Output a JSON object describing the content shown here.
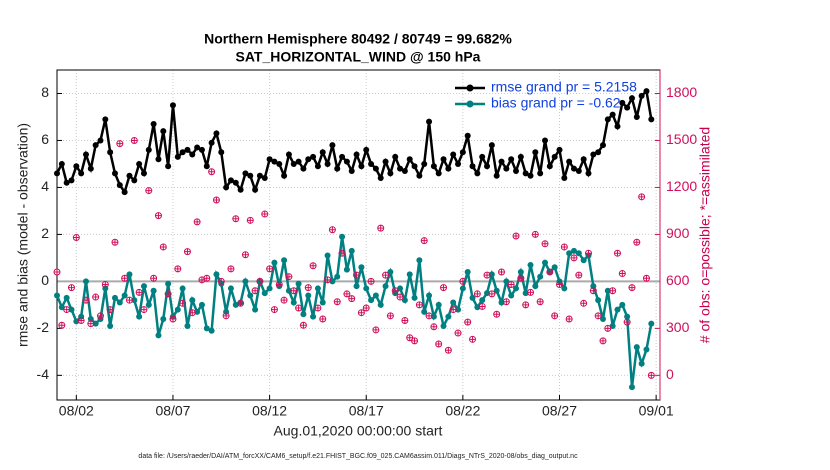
{
  "chart_data": {
    "type": "line",
    "title": "Northern Hemisphere 80492 / 80749 = 99.682%",
    "subtitle": "SAT_HORIZONTAL_WIND @ 150 hPa",
    "xlabel": "Aug.01,2020 00:00:00 start",
    "ylabel": "rmse and bias (model - observation)",
    "y2label": "# of obs: o=possible; *=assimilated",
    "footnote": "data file: /Users/raeder/DAI/ATM_forcXX/CAM6_setup/f.e21.FHIST_BGC.f09_025.CAM6assim.011/Diags_NTrS_2020-08/obs_diag_output.nc",
    "legend": "upper right",
    "grid": true,
    "xlim": [
      0,
      31.2
    ],
    "xticks": [
      {
        "value": 1,
        "label": "08/02"
      },
      {
        "value": 6,
        "label": "08/07"
      },
      {
        "value": 11,
        "label": "08/12"
      },
      {
        "value": 16,
        "label": "08/17"
      },
      {
        "value": 21,
        "label": "08/22"
      },
      {
        "value": 26,
        "label": "08/27"
      },
      {
        "value": 31,
        "label": "09/01"
      }
    ],
    "ylim": [
      -5.05,
      9.0
    ],
    "yticks": [
      -4,
      -2,
      0,
      2,
      4,
      6,
      8
    ],
    "y2lim": [
      -157.5,
      1950
    ],
    "y2ticks": [
      0,
      300,
      600,
      900,
      1200,
      1500,
      1800
    ],
    "x": [
      0,
      0.25,
      0.5,
      0.75,
      1,
      1.25,
      1.5,
      1.75,
      2,
      2.25,
      2.5,
      2.75,
      3,
      3.25,
      3.5,
      3.75,
      4,
      4.25,
      4.5,
      4.75,
      5,
      5.25,
      5.5,
      5.75,
      6,
      6.25,
      6.5,
      6.75,
      7,
      7.25,
      7.5,
      7.75,
      8,
      8.25,
      8.5,
      8.75,
      9,
      9.25,
      9.5,
      9.75,
      10,
      10.25,
      10.5,
      10.75,
      11,
      11.25,
      11.5,
      11.75,
      12,
      12.25,
      12.5,
      12.75,
      13,
      13.25,
      13.5,
      13.75,
      14,
      14.25,
      14.5,
      14.75,
      15,
      15.25,
      15.5,
      15.75,
      16,
      16.25,
      16.5,
      16.75,
      17,
      17.25,
      17.5,
      17.75,
      18,
      18.25,
      18.5,
      18.75,
      19,
      19.25,
      19.5,
      19.75,
      20,
      20.25,
      20.5,
      20.75,
      21,
      21.25,
      21.5,
      21.75,
      22,
      22.25,
      22.5,
      22.75,
      23,
      23.25,
      23.5,
      23.75,
      24,
      24.25,
      24.5,
      24.75,
      25,
      25.25,
      25.5,
      25.75,
      26,
      26.25,
      26.5,
      26.75,
      27,
      27.25,
      27.5,
      27.75,
      28,
      28.25,
      28.5,
      28.75,
      29,
      29.25,
      29.5,
      29.75,
      30,
      30.25,
      30.5,
      30.75
    ],
    "series": [
      {
        "name": "rmse grand pr = 5.2158",
        "color": "#000000",
        "values": [
          4.6,
          5.0,
          4.2,
          4.3,
          4.9,
          4.6,
          5.4,
          4.8,
          5.8,
          6.0,
          6.9,
          5.5,
          4.6,
          4.1,
          3.8,
          4.5,
          4.3,
          5.0,
          4.6,
          5.6,
          6.7,
          5.2,
          6.4,
          4.9,
          7.5,
          5.3,
          5.5,
          5.6,
          5.4,
          5.7,
          5.6,
          4.9,
          5.9,
          6.3,
          5.5,
          4.0,
          4.3,
          4.2,
          3.9,
          4.6,
          4.5,
          3.9,
          4.5,
          4.4,
          5.2,
          5.1,
          5.0,
          4.5,
          5.4,
          5.0,
          5.1,
          4.8,
          5.2,
          5.3,
          4.9,
          5.5,
          5.0,
          5.8,
          4.8,
          5.3,
          5.1,
          4.7,
          5.4,
          4.9,
          5.6,
          5.0,
          4.8,
          4.4,
          5.1,
          4.6,
          5.3,
          4.8,
          4.7,
          5.2,
          4.9,
          4.5,
          5.0,
          6.8,
          4.9,
          4.6,
          5.2,
          4.8,
          5.4,
          5.0,
          5.5,
          6.2,
          4.9,
          4.6,
          5.3,
          4.9,
          5.8,
          4.5,
          5.1,
          4.8,
          5.2,
          4.7,
          5.3,
          4.6,
          4.5,
          5.5,
          4.6,
          6.0,
          4.9,
          5.3,
          5.6,
          4.4,
          5.1,
          4.8,
          4.7,
          5.2,
          4.6,
          5.4,
          5.5,
          5.8,
          6.9,
          7.1,
          6.6,
          7.6,
          7.4,
          7.8,
          7.0,
          7.9,
          8.1,
          6.9
        ]
      },
      {
        "name": "bias grand pr = -0.62",
        "color": "#008080",
        "values": [
          -0.6,
          -1.1,
          -0.7,
          -1.2,
          -1.7,
          -1.5,
          0.0,
          -1.6,
          -1.8,
          -1.6,
          -0.3,
          -1.9,
          -0.7,
          -0.9,
          -0.6,
          0.3,
          -0.8,
          -1.5,
          -0.2,
          -1.0,
          -0.4,
          -2.3,
          -1.6,
          -0.1,
          -1.5,
          -1.2,
          -0.3,
          -1.9,
          -0.8,
          -1.3,
          -1.0,
          -2.0,
          -2.1,
          0.3,
          -0.1,
          -1.3,
          -0.3,
          -1.0,
          -0.9,
          0.0,
          -0.6,
          -1.2,
          0.0,
          -0.5,
          -0.3,
          0.8,
          -0.2,
          0.9,
          -0.4,
          -0.9,
          -0.1,
          -1.4,
          -0.6,
          -1.5,
          -0.3,
          -0.9,
          1.1,
          0.0,
          0.2,
          1.9,
          0.5,
          1.3,
          -0.2,
          0.6,
          -0.3,
          -0.8,
          -0.6,
          -1.0,
          -0.2,
          0.4,
          -0.5,
          -0.3,
          -0.8,
          0.3,
          -0.7,
          0.9,
          -1.3,
          -0.6,
          -1.5,
          -1.0,
          -1.9,
          -1.5,
          -0.9,
          -1.2,
          -0.3,
          0.4,
          -0.7,
          -1.1,
          -0.8,
          -0.5,
          0.3,
          -0.4,
          -0.9,
          0.0,
          -0.6,
          -0.3,
          0.4,
          -0.5,
          0.7,
          -0.2,
          0.2,
          0.8,
          0.4,
          0.6,
          0.0,
          -0.3,
          1.2,
          1.3,
          1.2,
          0.9,
          1.1,
          -0.2,
          -0.8,
          -1.6,
          -0.4,
          -1.9,
          -1.2,
          -1.0,
          -1.5,
          -4.5,
          -2.8,
          -3.5,
          -2.9,
          -1.8
        ]
      },
      {
        "color": "#d0105a",
        "axis": "y2",
        "values": [
          660,
          320,
          420,
          560,
          880,
          350,
          480,
          330,
          500,
          380,
          580,
          420,
          850,
          1480,
          620,
          480,
          1500,
          530,
          420,
          1180,
          620,
          1020,
          820,
          520,
          360,
          680,
          460,
          790,
          400,
          980,
          610,
          620,
          1300,
          1120,
          600,
          380,
          680,
          1000,
          460,
          770,
          990,
          540,
          600,
          1030,
          680,
          420,
          580,
          480,
          630,
          540,
          430,
          320,
          560,
          700,
          430,
          360,
          610,
          930,
          470,
          780,
          520,
          490,
          640,
          400,
          430,
          600,
          290,
          940,
          640,
          380,
          540,
          500,
          350,
          240,
          220,
          450,
          860,
          380,
          310,
          200,
          560,
          160,
          420,
          270,
          600,
          340,
          230,
          520,
          440,
          640,
          520,
          390,
          660,
          470,
          580,
          890,
          620,
          450,
          530,
          900,
          470,
          840,
          660,
          380,
          580,
          820,
          360,
          750,
          640,
          460,
          780,
          540,
          380,
          220,
          300,
          540,
          780,
          650,
          340,
          560,
          850,
          1140,
          620,
          0
        ]
      }
    ]
  }
}
